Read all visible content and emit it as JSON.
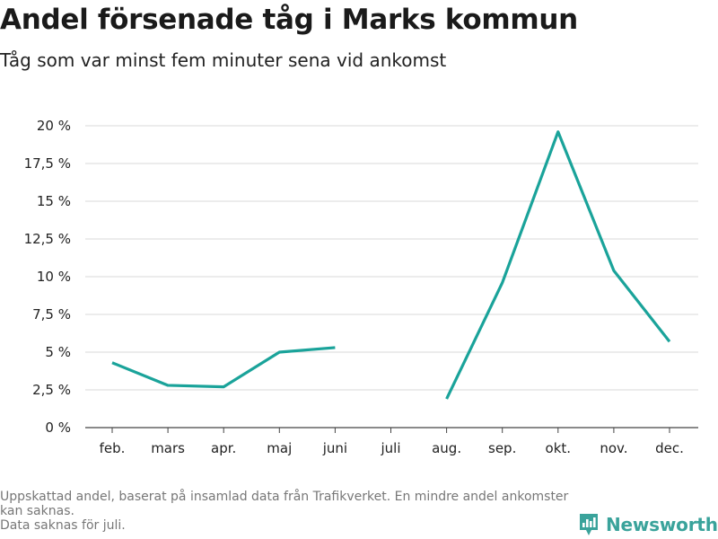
{
  "title": "Andel försenade tåg i Marks kommun",
  "subtitle": "Tåg som var minst fem minuter sena vid ankomst",
  "footnote": [
    "Uppskattad andel, baserat på insamlad data från Trafikverket. En mindre andel ankomster kan saknas.",
    "Data saknas för juli."
  ],
  "brand": {
    "name": "Newsworthy",
    "icon": "newsworthy-logo-icon",
    "color": "#3aa39b"
  },
  "chart_data": {
    "type": "line",
    "title": "Andel försenade tåg i Marks kommun",
    "subtitle": "Tåg som var minst fem minuter sena vid ankomst",
    "categories": [
      "feb.",
      "mars",
      "apr.",
      "maj",
      "juni",
      "juli",
      "aug.",
      "sep.",
      "okt.",
      "nov.",
      "dec."
    ],
    "series": [
      {
        "color": "#1aa39a",
        "values": [
          4.3,
          2.8,
          2.7,
          5.0,
          5.3,
          null,
          1.9,
          9.6,
          19.6,
          10.4,
          5.7
        ]
      }
    ],
    "yticks": [
      {
        "value": 0,
        "label": "0 %"
      },
      {
        "value": 2.5,
        "label": "2,5 %"
      },
      {
        "value": 5,
        "label": "5 %"
      },
      {
        "value": 7.5,
        "label": "7,5 %"
      },
      {
        "value": 10,
        "label": "10 %"
      },
      {
        "value": 12.5,
        "label": "12,5 %"
      },
      {
        "value": 15,
        "label": "15 %"
      },
      {
        "value": 17.5,
        "label": "17,5 %"
      },
      {
        "value": 20,
        "label": "20 %"
      }
    ],
    "ylim": [
      0,
      20
    ],
    "grid": true,
    "xlabel": "",
    "ylabel": ""
  }
}
